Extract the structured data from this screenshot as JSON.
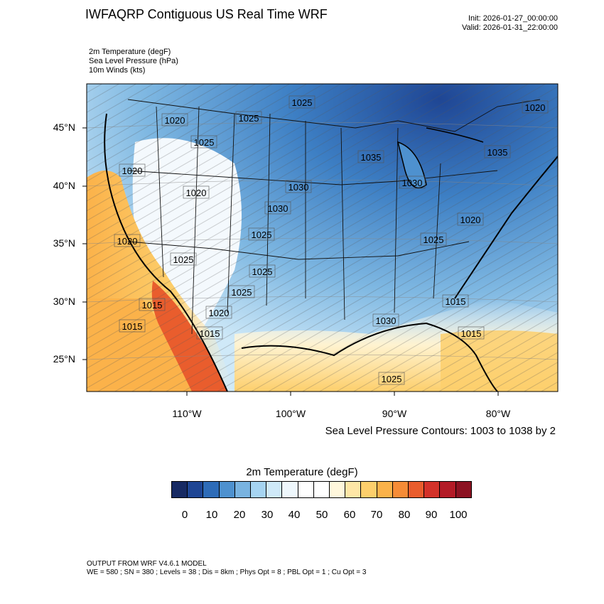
{
  "header": {
    "title": "IWFAQRP Contiguous US Real Time WRF",
    "init": "Init: 2026-01-27_00:00:00",
    "valid": "Valid: 2026-01-31_22:00:00"
  },
  "fields": [
    "2m Temperature   (degF)",
    "Sea Level Pressure   (hPa)",
    "10m Winds   (kts)"
  ],
  "axes": {
    "lat_ticks": [
      "45°N",
      "40°N",
      "35°N",
      "30°N",
      "25°N"
    ],
    "lon_ticks": [
      "110°W",
      "100°W",
      "90°W",
      "80°W"
    ]
  },
  "pressure_labels": [
    "1025",
    "1020",
    "1025",
    "1025",
    "1020",
    "1020",
    "1020",
    "1025",
    "1035",
    "1030",
    "1030",
    "1025",
    "1020",
    "1030",
    "1035",
    "1025",
    "1020",
    "1025",
    "1015",
    "1015",
    "1020",
    "1015",
    "1030",
    "1015",
    "1015",
    "1025",
    "1025"
  ],
  "contour_note": "Sea Level Pressure Contours: 1003 to 1038 by 2",
  "colorbar": {
    "title": "2m Temperature  (degF)",
    "labels": [
      "0",
      "10",
      "20",
      "30",
      "40",
      "50",
      "60",
      "70",
      "80",
      "90",
      "100"
    ],
    "colors": [
      "#172a63",
      "#1f4694",
      "#2e6cb8",
      "#4e91cf",
      "#79b3e0",
      "#a6d4f1",
      "#cfe9f8",
      "#eef7fc",
      "#ffffff",
      "#ffffff",
      "#fff7dc",
      "#fee6a6",
      "#fdcf6c",
      "#fbb24a",
      "#f68c37",
      "#e95d2d",
      "#d3322a",
      "#b31b27",
      "#8c1222"
    ]
  },
  "footer": {
    "model": "OUTPUT FROM WRF V4.6.1 MODEL",
    "info": "WE = 580 ; SN = 380 ; Levels = 38 ; Dis = 8km ; Phys Opt = 8 ; PBL Opt = 1 ; Cu Opt = 3"
  }
}
